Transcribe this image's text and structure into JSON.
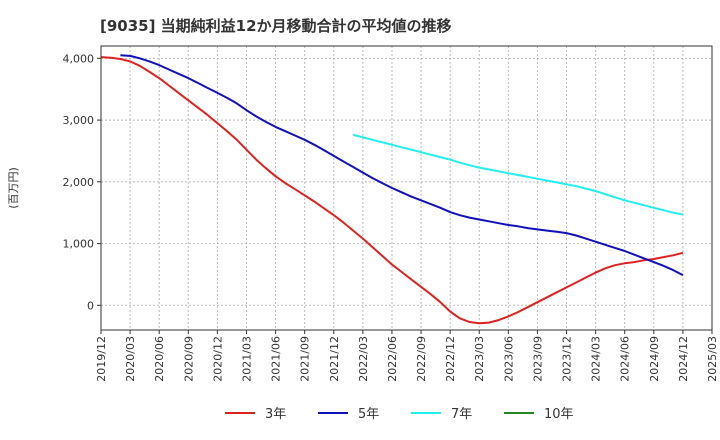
{
  "chart_data": {
    "type": "line",
    "title": "[9035]  当期純利益12か月移動合計の平均値の推移",
    "ylabel": "(百万円)",
    "xlabel": "",
    "ylim": [
      -400,
      4200
    ],
    "yticks": [
      0,
      1000,
      2000,
      3000,
      4000
    ],
    "ytick_labels": [
      "0",
      "1,000",
      "2,000",
      "3,000",
      "4,000"
    ],
    "xlim": [
      "2019-12",
      "2025-03"
    ],
    "xtick_labels": [
      "2019/12",
      "2020/03",
      "2020/06",
      "2020/09",
      "2020/12",
      "2021/03",
      "2021/06",
      "2021/09",
      "2021/12",
      "2022/03",
      "2022/06",
      "2022/09",
      "2022/12",
      "2023/03",
      "2023/06",
      "2023/09",
      "2023/12",
      "2024/03",
      "2024/06",
      "2024/09",
      "2024/12",
      "2025/03"
    ],
    "grid": true,
    "legend_position": "bottom",
    "series": [
      {
        "name": "3年",
        "color": "#dd2222",
        "points": [
          [
            "2019-12",
            4020
          ],
          [
            "2020-01",
            4010
          ],
          [
            "2020-02",
            3990
          ],
          [
            "2020-03",
            3950
          ],
          [
            "2020-04",
            3880
          ],
          [
            "2020-05",
            3780
          ],
          [
            "2020-06",
            3680
          ],
          [
            "2020-07",
            3560
          ],
          [
            "2020-08",
            3440
          ],
          [
            "2020-09",
            3320
          ],
          [
            "2020-10",
            3200
          ],
          [
            "2020-11",
            3080
          ],
          [
            "2020-12",
            2950
          ],
          [
            "2021-01",
            2820
          ],
          [
            "2021-02",
            2680
          ],
          [
            "2021-03",
            2520
          ],
          [
            "2021-04",
            2360
          ],
          [
            "2021-05",
            2220
          ],
          [
            "2021-06",
            2090
          ],
          [
            "2021-07",
            1980
          ],
          [
            "2021-08",
            1880
          ],
          [
            "2021-09",
            1780
          ],
          [
            "2021-10",
            1680
          ],
          [
            "2021-11",
            1570
          ],
          [
            "2021-12",
            1460
          ],
          [
            "2022-01",
            1340
          ],
          [
            "2022-02",
            1210
          ],
          [
            "2022-03",
            1080
          ],
          [
            "2022-04",
            940
          ],
          [
            "2022-05",
            800
          ],
          [
            "2022-06",
            660
          ],
          [
            "2022-07",
            540
          ],
          [
            "2022-08",
            420
          ],
          [
            "2022-09",
            300
          ],
          [
            "2022-10",
            180
          ],
          [
            "2022-11",
            50
          ],
          [
            "2022-12",
            -100
          ],
          [
            "2023-01",
            -210
          ],
          [
            "2023-02",
            -270
          ],
          [
            "2023-03",
            -290
          ],
          [
            "2023-04",
            -280
          ],
          [
            "2023-05",
            -240
          ],
          [
            "2023-06",
            -180
          ],
          [
            "2023-07",
            -110
          ],
          [
            "2023-08",
            -30
          ],
          [
            "2023-09",
            50
          ],
          [
            "2023-10",
            130
          ],
          [
            "2023-11",
            210
          ],
          [
            "2023-12",
            290
          ],
          [
            "2024-01",
            370
          ],
          [
            "2024-02",
            450
          ],
          [
            "2024-03",
            530
          ],
          [
            "2024-04",
            600
          ],
          [
            "2024-05",
            650
          ],
          [
            "2024-06",
            680
          ],
          [
            "2024-07",
            700
          ],
          [
            "2024-08",
            730
          ],
          [
            "2024-09",
            750
          ],
          [
            "2024-10",
            780
          ],
          [
            "2024-11",
            810
          ],
          [
            "2024-12",
            850
          ]
        ]
      },
      {
        "name": "5年",
        "color": "#1111bb",
        "points": [
          [
            "2020-02",
            4050
          ],
          [
            "2020-03",
            4040
          ],
          [
            "2020-04",
            4000
          ],
          [
            "2020-05",
            3950
          ],
          [
            "2020-06",
            3890
          ],
          [
            "2020-07",
            3820
          ],
          [
            "2020-08",
            3750
          ],
          [
            "2020-09",
            3680
          ],
          [
            "2020-10",
            3600
          ],
          [
            "2020-11",
            3520
          ],
          [
            "2020-12",
            3440
          ],
          [
            "2021-01",
            3360
          ],
          [
            "2021-02",
            3270
          ],
          [
            "2021-03",
            3160
          ],
          [
            "2021-04",
            3060
          ],
          [
            "2021-05",
            2970
          ],
          [
            "2021-06",
            2890
          ],
          [
            "2021-07",
            2820
          ],
          [
            "2021-08",
            2750
          ],
          [
            "2021-09",
            2680
          ],
          [
            "2021-10",
            2600
          ],
          [
            "2021-11",
            2510
          ],
          [
            "2021-12",
            2420
          ],
          [
            "2022-01",
            2330
          ],
          [
            "2022-02",
            2240
          ],
          [
            "2022-03",
            2150
          ],
          [
            "2022-04",
            2060
          ],
          [
            "2022-05",
            1980
          ],
          [
            "2022-06",
            1900
          ],
          [
            "2022-07",
            1830
          ],
          [
            "2022-08",
            1760
          ],
          [
            "2022-09",
            1700
          ],
          [
            "2022-10",
            1640
          ],
          [
            "2022-11",
            1580
          ],
          [
            "2022-12",
            1510
          ],
          [
            "2023-01",
            1460
          ],
          [
            "2023-02",
            1420
          ],
          [
            "2023-03",
            1390
          ],
          [
            "2023-04",
            1360
          ],
          [
            "2023-05",
            1330
          ],
          [
            "2023-06",
            1300
          ],
          [
            "2023-07",
            1280
          ],
          [
            "2023-08",
            1250
          ],
          [
            "2023-09",
            1230
          ],
          [
            "2023-10",
            1210
          ],
          [
            "2023-11",
            1190
          ],
          [
            "2023-12",
            1170
          ],
          [
            "2024-01",
            1130
          ],
          [
            "2024-02",
            1080
          ],
          [
            "2024-03",
            1030
          ],
          [
            "2024-04",
            980
          ],
          [
            "2024-05",
            930
          ],
          [
            "2024-06",
            880
          ],
          [
            "2024-07",
            820
          ],
          [
            "2024-08",
            760
          ],
          [
            "2024-09",
            700
          ],
          [
            "2024-10",
            640
          ],
          [
            "2024-11",
            570
          ],
          [
            "2024-12",
            490
          ]
        ]
      },
      {
        "name": "7年",
        "color": "#22eeee",
        "points": [
          [
            "2022-02",
            2760
          ],
          [
            "2022-03",
            2720
          ],
          [
            "2022-04",
            2680
          ],
          [
            "2022-05",
            2640
          ],
          [
            "2022-06",
            2600
          ],
          [
            "2022-07",
            2560
          ],
          [
            "2022-08",
            2520
          ],
          [
            "2022-09",
            2480
          ],
          [
            "2022-10",
            2440
          ],
          [
            "2022-11",
            2400
          ],
          [
            "2022-12",
            2360
          ],
          [
            "2023-01",
            2310
          ],
          [
            "2023-02",
            2270
          ],
          [
            "2023-03",
            2230
          ],
          [
            "2023-04",
            2200
          ],
          [
            "2023-05",
            2170
          ],
          [
            "2023-06",
            2140
          ],
          [
            "2023-07",
            2110
          ],
          [
            "2023-08",
            2080
          ],
          [
            "2023-09",
            2050
          ],
          [
            "2023-10",
            2020
          ],
          [
            "2023-11",
            1990
          ],
          [
            "2023-12",
            1960
          ],
          [
            "2024-01",
            1930
          ],
          [
            "2024-02",
            1890
          ],
          [
            "2024-03",
            1850
          ],
          [
            "2024-04",
            1800
          ],
          [
            "2024-05",
            1750
          ],
          [
            "2024-06",
            1700
          ],
          [
            "2024-07",
            1660
          ],
          [
            "2024-08",
            1620
          ],
          [
            "2024-09",
            1580
          ],
          [
            "2024-10",
            1540
          ],
          [
            "2024-11",
            1500
          ],
          [
            "2024-12",
            1470
          ]
        ]
      },
      {
        "name": "10年",
        "color": "#228822",
        "points": []
      }
    ]
  }
}
